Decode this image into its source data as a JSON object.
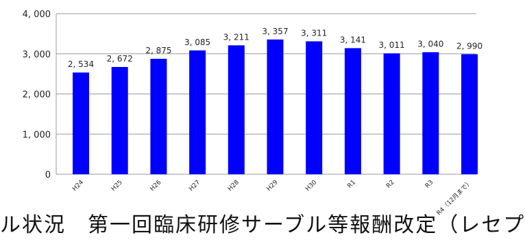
{
  "chart_data": {
    "type": "bar",
    "categories": [
      "H24",
      "H25",
      "H26",
      "H27",
      "H28",
      "H29",
      "H30",
      "R1",
      "R2",
      "R3",
      "R4（12月まで）"
    ],
    "values": [
      2534,
      2672,
      2875,
      3085,
      3211,
      3357,
      3311,
      3141,
      3011,
      3040,
      2990
    ],
    "value_labels": [
      "2, 534",
      "2, 672",
      "2, 875",
      "3, 085",
      "3, 211",
      "3, 357",
      "3, 311",
      "3, 141",
      "3, 011",
      "3, 040",
      "2, 990"
    ],
    "ylim": [
      0,
      4000
    ],
    "y_ticks": [
      0,
      1000,
      2000,
      3000,
      4000
    ],
    "y_tick_labels": [
      "0",
      "1, 000",
      "2, 000",
      "3, 000",
      "4, 000"
    ],
    "title": "",
    "xlabel": "",
    "ylabel": "",
    "grid": true,
    "bar_color": "#0000ff",
    "grid_color": "#9a9a9a"
  },
  "caption": "ル状況　第一回臨床研修サーブル等報酬改定（レセプ"
}
